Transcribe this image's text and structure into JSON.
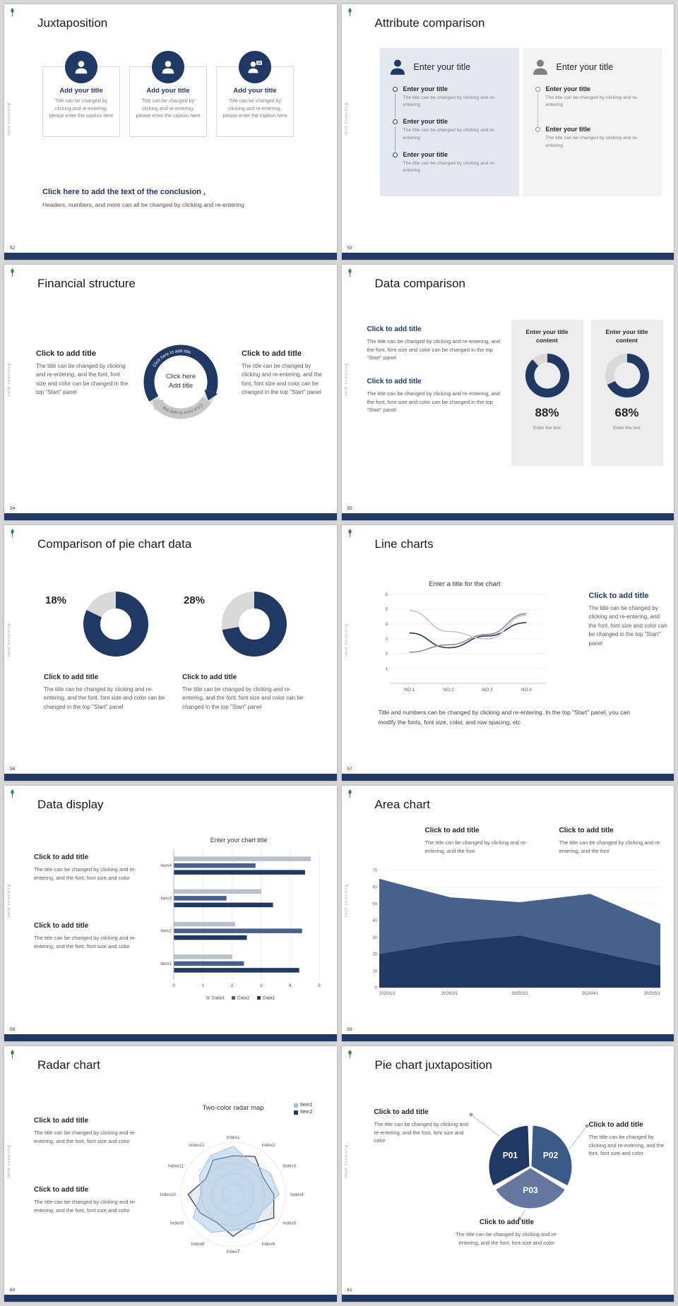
{
  "colors": {
    "navy": "#1f3864",
    "slate": "#46618c",
    "light_slate": "#64789f",
    "track_gray": "#d9d9d9",
    "panel_blue": "#e4e9f1",
    "panel_gray": "#f3f3f3",
    "bottom_bar": "#203864",
    "logo_green": "#3b8a3e"
  },
  "common": {
    "sidebar_text": "Business plan"
  },
  "slides": [
    {
      "number": "52",
      "title": "Juxtaposition",
      "cards": [
        {
          "icon": "person-icon",
          "title": "Add your title",
          "body": "Title can be changed by clicking and re-entering, please enter the caption here"
        },
        {
          "icon": "person-icon",
          "title": "Add your title",
          "body": "Title can be changed by clicking and re-entering, please enter the caption here"
        },
        {
          "icon": "person-chat-icon",
          "title": "Add your title",
          "body": "Title can be changed by clicking and re-entering, please enter the caption here"
        }
      ],
      "conclusion_title": "Click here to add the text of the conclusion ,",
      "conclusion_body": "Headers, numbers, and more can all be changed by clicking and re-entering"
    },
    {
      "number": "53",
      "title": "Attribute comparison",
      "panels": [
        {
          "heading": "Enter your title",
          "items": [
            {
              "title": "Enter your title",
              "body": "The title can be changed by clicking and re-entering"
            },
            {
              "title": "Enter your title",
              "body": "The title can be changed by clicking and re-entering"
            },
            {
              "title": "Enter your title",
              "body": "The title can be changed by clicking and re-entering"
            }
          ]
        },
        {
          "heading": "Enter your title",
          "items": [
            {
              "title": "Enter your title",
              "body": "The title can be changed by clicking and re-entering"
            },
            {
              "title": "Enter your title",
              "body": "The title can be changed by clicking and re-entering"
            }
          ]
        }
      ]
    },
    {
      "number": "54",
      "title": "Financial structure",
      "left": {
        "title": "Click to add title",
        "body": "The title can be changed by clicking and re-entering, and the font, font size and color can be changed in the top \"Start\" panel"
      },
      "right": {
        "title": "Click to add title",
        "body": "The title can be changed by clicking and re-entering, and the font, font size and color can be changed in the top \"Start\" panel"
      },
      "center": {
        "line1": "Click here",
        "line2": "Add title",
        "arc_text_top": "Click here to add title",
        "arc_text_bottom": "Click here to add title"
      }
    },
    {
      "number": "55",
      "title": "Data comparison",
      "blocks": [
        {
          "title": "Click to add title",
          "body": "The title can be changed by clicking and re-entering, and the font, font size and color can be changed in the top \"Start\" panel"
        },
        {
          "title": "Click to add title",
          "body": "The title can be changed by clicking and re-entering, and the font, font size and color can be changed in the top \"Start\" panel"
        }
      ],
      "panels": [
        {
          "heading": "Enter your title content",
          "percent": 88,
          "percent_label": "88%",
          "caption": "Enter the text"
        },
        {
          "heading": "Enter your title content",
          "percent": 68,
          "percent_label": "68%",
          "caption": "Enter the text"
        }
      ]
    },
    {
      "number": "56",
      "title": "Comparison of pie chart data",
      "items": [
        {
          "percent": 18,
          "percent_label": "18%",
          "title": "Click to add title",
          "body": "The title can be changed by clicking and re-entering, and the font, font size and color can be changed in the top \"Start\" panel"
        },
        {
          "percent": 28,
          "percent_label": "28%",
          "title": "Click to add title",
          "body": "The title can be changed by clicking and re-entering, and the font, font size and color can be changed in the top \"Start\" panel"
        }
      ]
    },
    {
      "number": "57",
      "title": "Line charts",
      "chart": {
        "type": "line",
        "title": "Enter a title for the chart",
        "x_labels": [
          "NO.1",
          "NO.2",
          "NO.3",
          "NO.4"
        ],
        "y_ticks": [
          1,
          2,
          3,
          4,
          5,
          6
        ],
        "ylim": [
          0,
          6
        ],
        "grid": true,
        "series": [
          {
            "name": "series-navy",
            "color": "#1f3864",
            "values": [
              3.4,
              2.4,
              3.2,
              4.1
            ]
          },
          {
            "name": "series-gray",
            "color": "#8c8c8c",
            "values": [
              2.1,
              2.6,
              3.3,
              4.7
            ]
          },
          {
            "name": "series-lightgray",
            "color": "#c3c3c3",
            "values": [
              4.9,
              3.5,
              3.0,
              4.6
            ]
          }
        ]
      },
      "side": {
        "title": "Click to add title",
        "body": "The title can be changed by clicking and re-entering, and the font, font size and color can be changed in the top \"Start\" panel"
      },
      "footer": "Title and numbers can be changed by clicking and re-entering. In the top \"Start\" panel, you can modify the fonts, font size, color, and row spacing, etc"
    },
    {
      "number": "58",
      "title": "Data display",
      "blocks": [
        {
          "title": "Click to add title",
          "body": "The title can be changed by clicking and re-entering, and the font, font size and color"
        },
        {
          "title": "Click to add title",
          "body": "The title can be changed by clicking and re-entering, and the font, font size and color"
        }
      ],
      "chart": {
        "type": "bar",
        "title": "Enter your chart title",
        "categories": [
          "Item1",
          "Item2",
          "Item3",
          "Item4"
        ],
        "x_ticks": [
          0,
          1,
          2,
          3,
          4,
          5
        ],
        "xlim": [
          0,
          5
        ],
        "legend_order": [
          "Data3",
          "Data2",
          "Data1"
        ],
        "series": [
          {
            "name": "Data1",
            "color": "#1f3864",
            "values": [
              4.3,
              2.5,
              3.4,
              4.5
            ]
          },
          {
            "name": "Data2",
            "color": "#46618c",
            "values": [
              2.4,
              4.4,
              1.8,
              2.8
            ]
          },
          {
            "name": "Data3",
            "color": "#b9c1cc",
            "values": [
              2.0,
              2.1,
              3.0,
              4.7
            ]
          }
        ]
      }
    },
    {
      "number": "59",
      "title": "Area chart",
      "blocks": [
        {
          "title": "Click to add title",
          "body": "The title can be changed by clicking and re-entering, and the font"
        },
        {
          "title": "Click to add title",
          "body": "The title can be changed by clicking and re-entering, and the font"
        }
      ],
      "chart": {
        "type": "area",
        "x_labels": [
          "2020/1/1",
          "2020/2/1",
          "2020/3/1",
          "2020/4/1",
          "2020/5/1"
        ],
        "y_ticks": [
          0,
          10,
          20,
          30,
          40,
          50,
          60,
          70
        ],
        "ylim": [
          0,
          70
        ],
        "series": [
          {
            "name": "upper",
            "color": "#46618c",
            "values": [
              65,
              54,
              51,
              56,
              38
            ]
          },
          {
            "name": "lower",
            "color": "#1f3864",
            "values": [
              20,
              27,
              31,
              22,
              13
            ]
          }
        ]
      }
    },
    {
      "number": "60",
      "title": "Radar chart",
      "blocks": [
        {
          "title": "Click to add title",
          "body": "The title can be changed by clicking and re-entering, and the font, font size and color"
        },
        {
          "title": "Click to add title",
          "body": "The title can be changed by clicking and re-entering, and the font, font size and color"
        }
      ],
      "chart": {
        "type": "radar",
        "title": "Two-color radar map",
        "axes": [
          "Index1",
          "Index2",
          "Index3",
          "Index4",
          "Index5",
          "Index6",
          "Index7",
          "Index8",
          "Index9",
          "Index10",
          "Index11",
          "Index12"
        ],
        "max": 5,
        "series": [
          {
            "name": "Item1",
            "color": "#9dc3e6",
            "values": [
              4.6,
              3.5,
              4.1,
              4.4,
              3.2,
              3.8,
              3.4,
              4.2,
              4.4,
              3.1,
              3.7,
              4.3
            ]
          },
          {
            "name": "Item2",
            "color": "#1f3864",
            "values": [
              3.7,
              4.2,
              3.3,
              3.9,
              4.5,
              3.3,
              4.0,
              3.1,
              3.6,
              4.3,
              3.0,
              3.8
            ]
          }
        ]
      }
    },
    {
      "number": "61",
      "title": "Pie chart juxtaposition",
      "chart": {
        "type": "pie",
        "segments": [
          {
            "label": "P01",
            "color": "#1f3864"
          },
          {
            "label": "P02",
            "color": "#3c5a87"
          },
          {
            "label": "P03",
            "color": "#64789f"
          }
        ]
      },
      "blocks": [
        {
          "title": "Click to add title",
          "body": "The title can be changed by clicking and re-entering, and the font, font size and color"
        },
        {
          "title": "Click to add title",
          "body": "The title can be changed by clicking and re-entering, and the font, font size and color"
        },
        {
          "title": "Click to add title",
          "body": "The title can be changed by clicking and re-entering, and the font, font size and color"
        }
      ]
    }
  ]
}
